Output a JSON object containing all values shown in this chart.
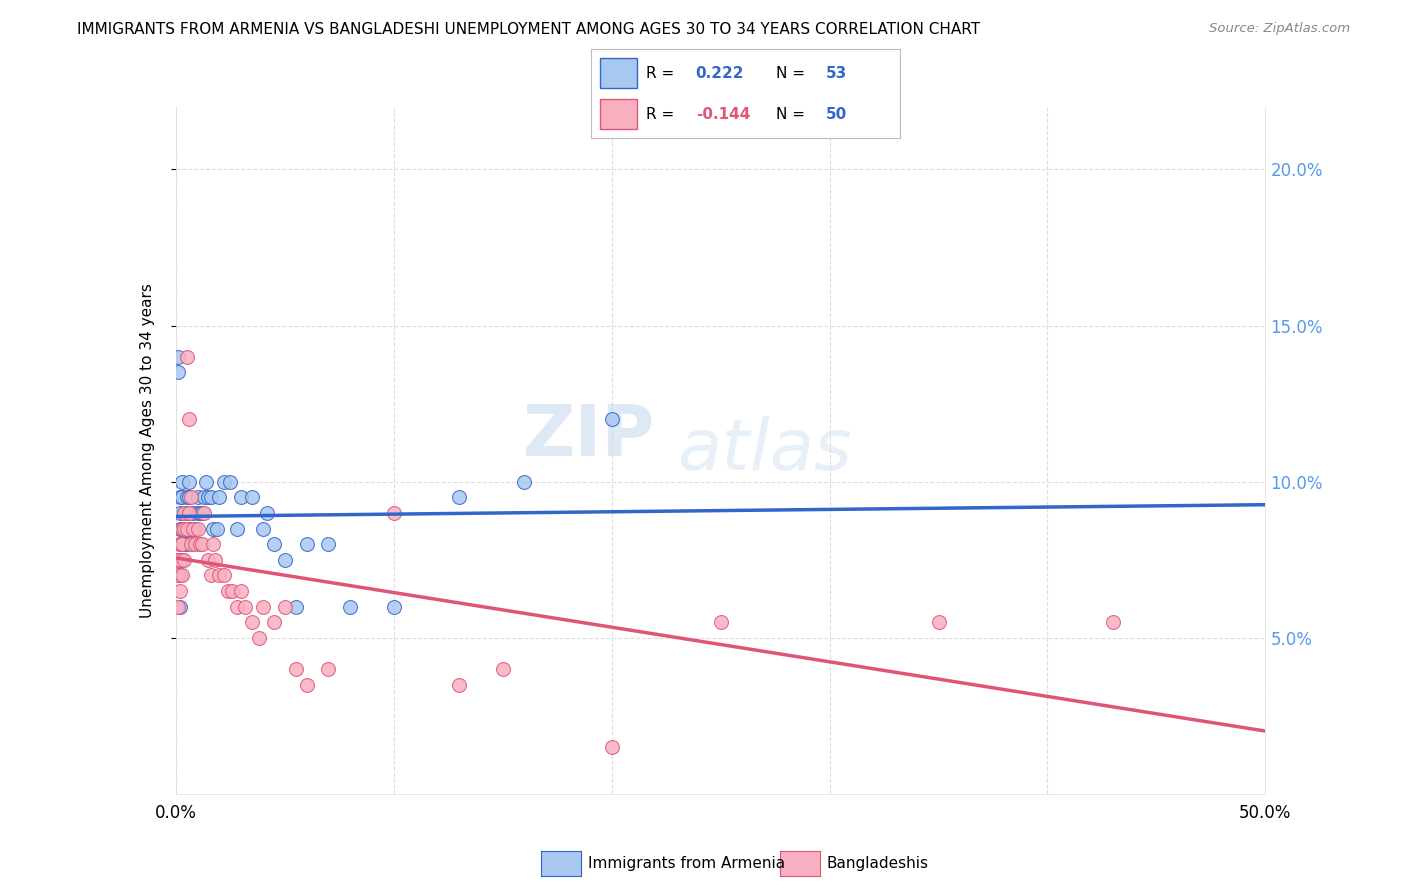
{
  "title": "IMMIGRANTS FROM ARMENIA VS BANGLADESHI UNEMPLOYMENT AMONG AGES 30 TO 34 YEARS CORRELATION CHART",
  "source": "Source: ZipAtlas.com",
  "ylabel": "Unemployment Among Ages 30 to 34 years",
  "legend1_r": "0.222",
  "legend1_n": "53",
  "legend2_r": "-0.144",
  "legend2_n": "50",
  "watermark_top": "ZIP",
  "watermark_bot": "atlas",
  "color_armenia": "#a8c8f0",
  "color_armenia_line": "#3366cc",
  "color_bangladesh": "#f8b0c0",
  "color_bangladesh_line": "#e05575",
  "color_right_axis": "#5599ee",
  "armenia_x": [
    0.001,
    0.001,
    0.002,
    0.002,
    0.002,
    0.002,
    0.002,
    0.002,
    0.002,
    0.003,
    0.003,
    0.003,
    0.003,
    0.004,
    0.004,
    0.004,
    0.005,
    0.005,
    0.005,
    0.006,
    0.006,
    0.006,
    0.007,
    0.008,
    0.009,
    0.01,
    0.01,
    0.011,
    0.012,
    0.013,
    0.014,
    0.015,
    0.016,
    0.017,
    0.019,
    0.02,
    0.022,
    0.025,
    0.028,
    0.03,
    0.035,
    0.04,
    0.042,
    0.045,
    0.05,
    0.055,
    0.06,
    0.07,
    0.08,
    0.1,
    0.13,
    0.16,
    0.2
  ],
  "armenia_y": [
    0.14,
    0.135,
    0.095,
    0.09,
    0.085,
    0.08,
    0.075,
    0.07,
    0.06,
    0.1,
    0.095,
    0.085,
    0.075,
    0.09,
    0.085,
    0.08,
    0.095,
    0.09,
    0.08,
    0.1,
    0.095,
    0.085,
    0.085,
    0.09,
    0.085,
    0.095,
    0.09,
    0.09,
    0.09,
    0.095,
    0.1,
    0.095,
    0.095,
    0.085,
    0.085,
    0.095,
    0.1,
    0.1,
    0.085,
    0.095,
    0.095,
    0.085,
    0.09,
    0.08,
    0.075,
    0.06,
    0.08,
    0.08,
    0.06,
    0.06,
    0.095,
    0.1,
    0.12
  ],
  "bangladesh_x": [
    0.001,
    0.001,
    0.001,
    0.002,
    0.002,
    0.002,
    0.003,
    0.003,
    0.003,
    0.004,
    0.004,
    0.004,
    0.005,
    0.005,
    0.006,
    0.006,
    0.007,
    0.007,
    0.008,
    0.009,
    0.01,
    0.011,
    0.012,
    0.013,
    0.015,
    0.016,
    0.017,
    0.018,
    0.02,
    0.022,
    0.024,
    0.026,
    0.028,
    0.03,
    0.032,
    0.035,
    0.038,
    0.04,
    0.045,
    0.05,
    0.055,
    0.06,
    0.07,
    0.1,
    0.13,
    0.15,
    0.2,
    0.25,
    0.35,
    0.43
  ],
  "bangladesh_y": [
    0.075,
    0.07,
    0.06,
    0.08,
    0.075,
    0.065,
    0.085,
    0.08,
    0.07,
    0.09,
    0.085,
    0.075,
    0.14,
    0.085,
    0.12,
    0.09,
    0.095,
    0.08,
    0.085,
    0.08,
    0.085,
    0.08,
    0.08,
    0.09,
    0.075,
    0.07,
    0.08,
    0.075,
    0.07,
    0.07,
    0.065,
    0.065,
    0.06,
    0.065,
    0.06,
    0.055,
    0.05,
    0.06,
    0.055,
    0.06,
    0.04,
    0.035,
    0.04,
    0.09,
    0.035,
    0.04,
    0.015,
    0.055,
    0.055,
    0.055
  ],
  "xlim": [
    0.0,
    0.5
  ],
  "ylim": [
    0.0,
    0.22
  ],
  "yticks": [
    0.05,
    0.1,
    0.15,
    0.2
  ],
  "ytick_labels": [
    "5.0%",
    "10.0%",
    "15.0%",
    "20.0%"
  ],
  "xticks": [
    0.0,
    0.1,
    0.2,
    0.3,
    0.4,
    0.5
  ],
  "xtick_labels_left": "0.0%",
  "xtick_labels_right": "50.0%",
  "background_color": "#ffffff",
  "grid_color": "#dddddd"
}
